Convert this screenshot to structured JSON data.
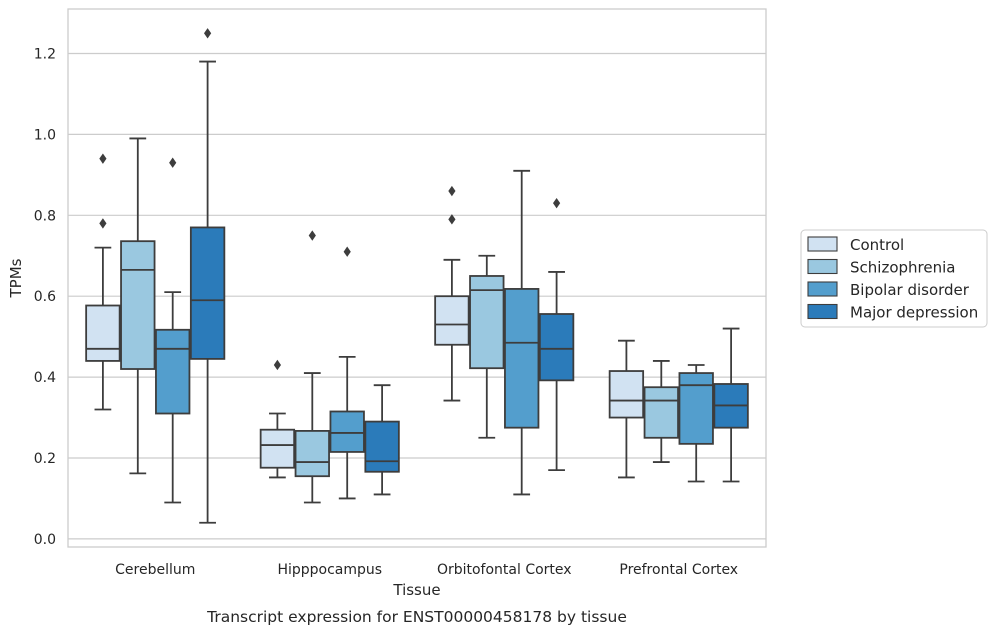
{
  "chart_data": {
    "type": "box",
    "xlabel": "Tissue",
    "ylabel": "TPMs",
    "caption": "Transcript expression for ENST00000458178 by tissue",
    "categories": [
      "Cerebellum",
      "Hipppocampus",
      "Orbitofontal Cortex",
      "Prefrontal Cortex"
    ],
    "ylim": [
      -0.02,
      1.31
    ],
    "yticks": [
      0.0,
      0.2,
      0.4,
      0.6,
      0.8,
      1.0,
      1.2
    ],
    "ytick_labels": [
      "0.0",
      "0.2",
      "0.4",
      "0.6",
      "0.8",
      "1.0",
      "1.2"
    ],
    "grid": "horizontal",
    "legend_position": "right",
    "series": [
      {
        "name": "Control",
        "color": "#d1e2f2",
        "boxes": [
          {
            "whislo": 0.32,
            "q1": 0.44,
            "med": 0.47,
            "q3": 0.577,
            "whishi": 0.72,
            "fliers": [
              0.78,
              0.94
            ]
          },
          {
            "whislo": 0.152,
            "q1": 0.176,
            "med": 0.232,
            "q3": 0.27,
            "whishi": 0.31,
            "fliers": [
              0.43
            ]
          },
          {
            "whislo": 0.342,
            "q1": 0.48,
            "med": 0.53,
            "q3": 0.6,
            "whishi": 0.69,
            "fliers": [
              0.79,
              0.86
            ]
          },
          {
            "whislo": 0.152,
            "q1": 0.3,
            "med": 0.342,
            "q3": 0.415,
            "whishi": 0.49,
            "fliers": []
          }
        ]
      },
      {
        "name": "Schizophrenia",
        "color": "#9ac8e0",
        "boxes": [
          {
            "whislo": 0.162,
            "q1": 0.42,
            "med": 0.665,
            "q3": 0.736,
            "whishi": 0.99,
            "fliers": []
          },
          {
            "whislo": 0.09,
            "q1": 0.155,
            "med": 0.19,
            "q3": 0.267,
            "whishi": 0.41,
            "fliers": [
              0.75
            ]
          },
          {
            "whislo": 0.25,
            "q1": 0.422,
            "med": 0.615,
            "q3": 0.65,
            "whishi": 0.7,
            "fliers": []
          },
          {
            "whislo": 0.19,
            "q1": 0.25,
            "med": 0.342,
            "q3": 0.375,
            "whishi": 0.44,
            "fliers": []
          }
        ]
      },
      {
        "name": "Bipolar disorder",
        "color": "#539ecd",
        "boxes": [
          {
            "whislo": 0.09,
            "q1": 0.31,
            "med": 0.47,
            "q3": 0.517,
            "whishi": 0.61,
            "fliers": [
              0.93
            ]
          },
          {
            "whislo": 0.1,
            "q1": 0.215,
            "med": 0.262,
            "q3": 0.315,
            "whishi": 0.45,
            "fliers": [
              0.71
            ]
          },
          {
            "whislo": 0.11,
            "q1": 0.275,
            "med": 0.485,
            "q3": 0.618,
            "whishi": 0.91,
            "fliers": []
          },
          {
            "whislo": 0.142,
            "q1": 0.235,
            "med": 0.38,
            "q3": 0.41,
            "whishi": 0.43,
            "fliers": []
          }
        ]
      },
      {
        "name": "Major depression",
        "color": "#2b7bba",
        "boxes": [
          {
            "whislo": 0.04,
            "q1": 0.445,
            "med": 0.59,
            "q3": 0.77,
            "whishi": 1.18,
            "fliers": [
              1.25
            ]
          },
          {
            "whislo": 0.11,
            "q1": 0.166,
            "med": 0.192,
            "q3": 0.29,
            "whishi": 0.38,
            "fliers": []
          },
          {
            "whislo": 0.17,
            "q1": 0.392,
            "med": 0.47,
            "q3": 0.556,
            "whishi": 0.66,
            "fliers": [
              0.83
            ]
          },
          {
            "whislo": 0.142,
            "q1": 0.275,
            "med": 0.33,
            "q3": 0.383,
            "whishi": 0.52,
            "fliers": []
          }
        ]
      }
    ]
  }
}
